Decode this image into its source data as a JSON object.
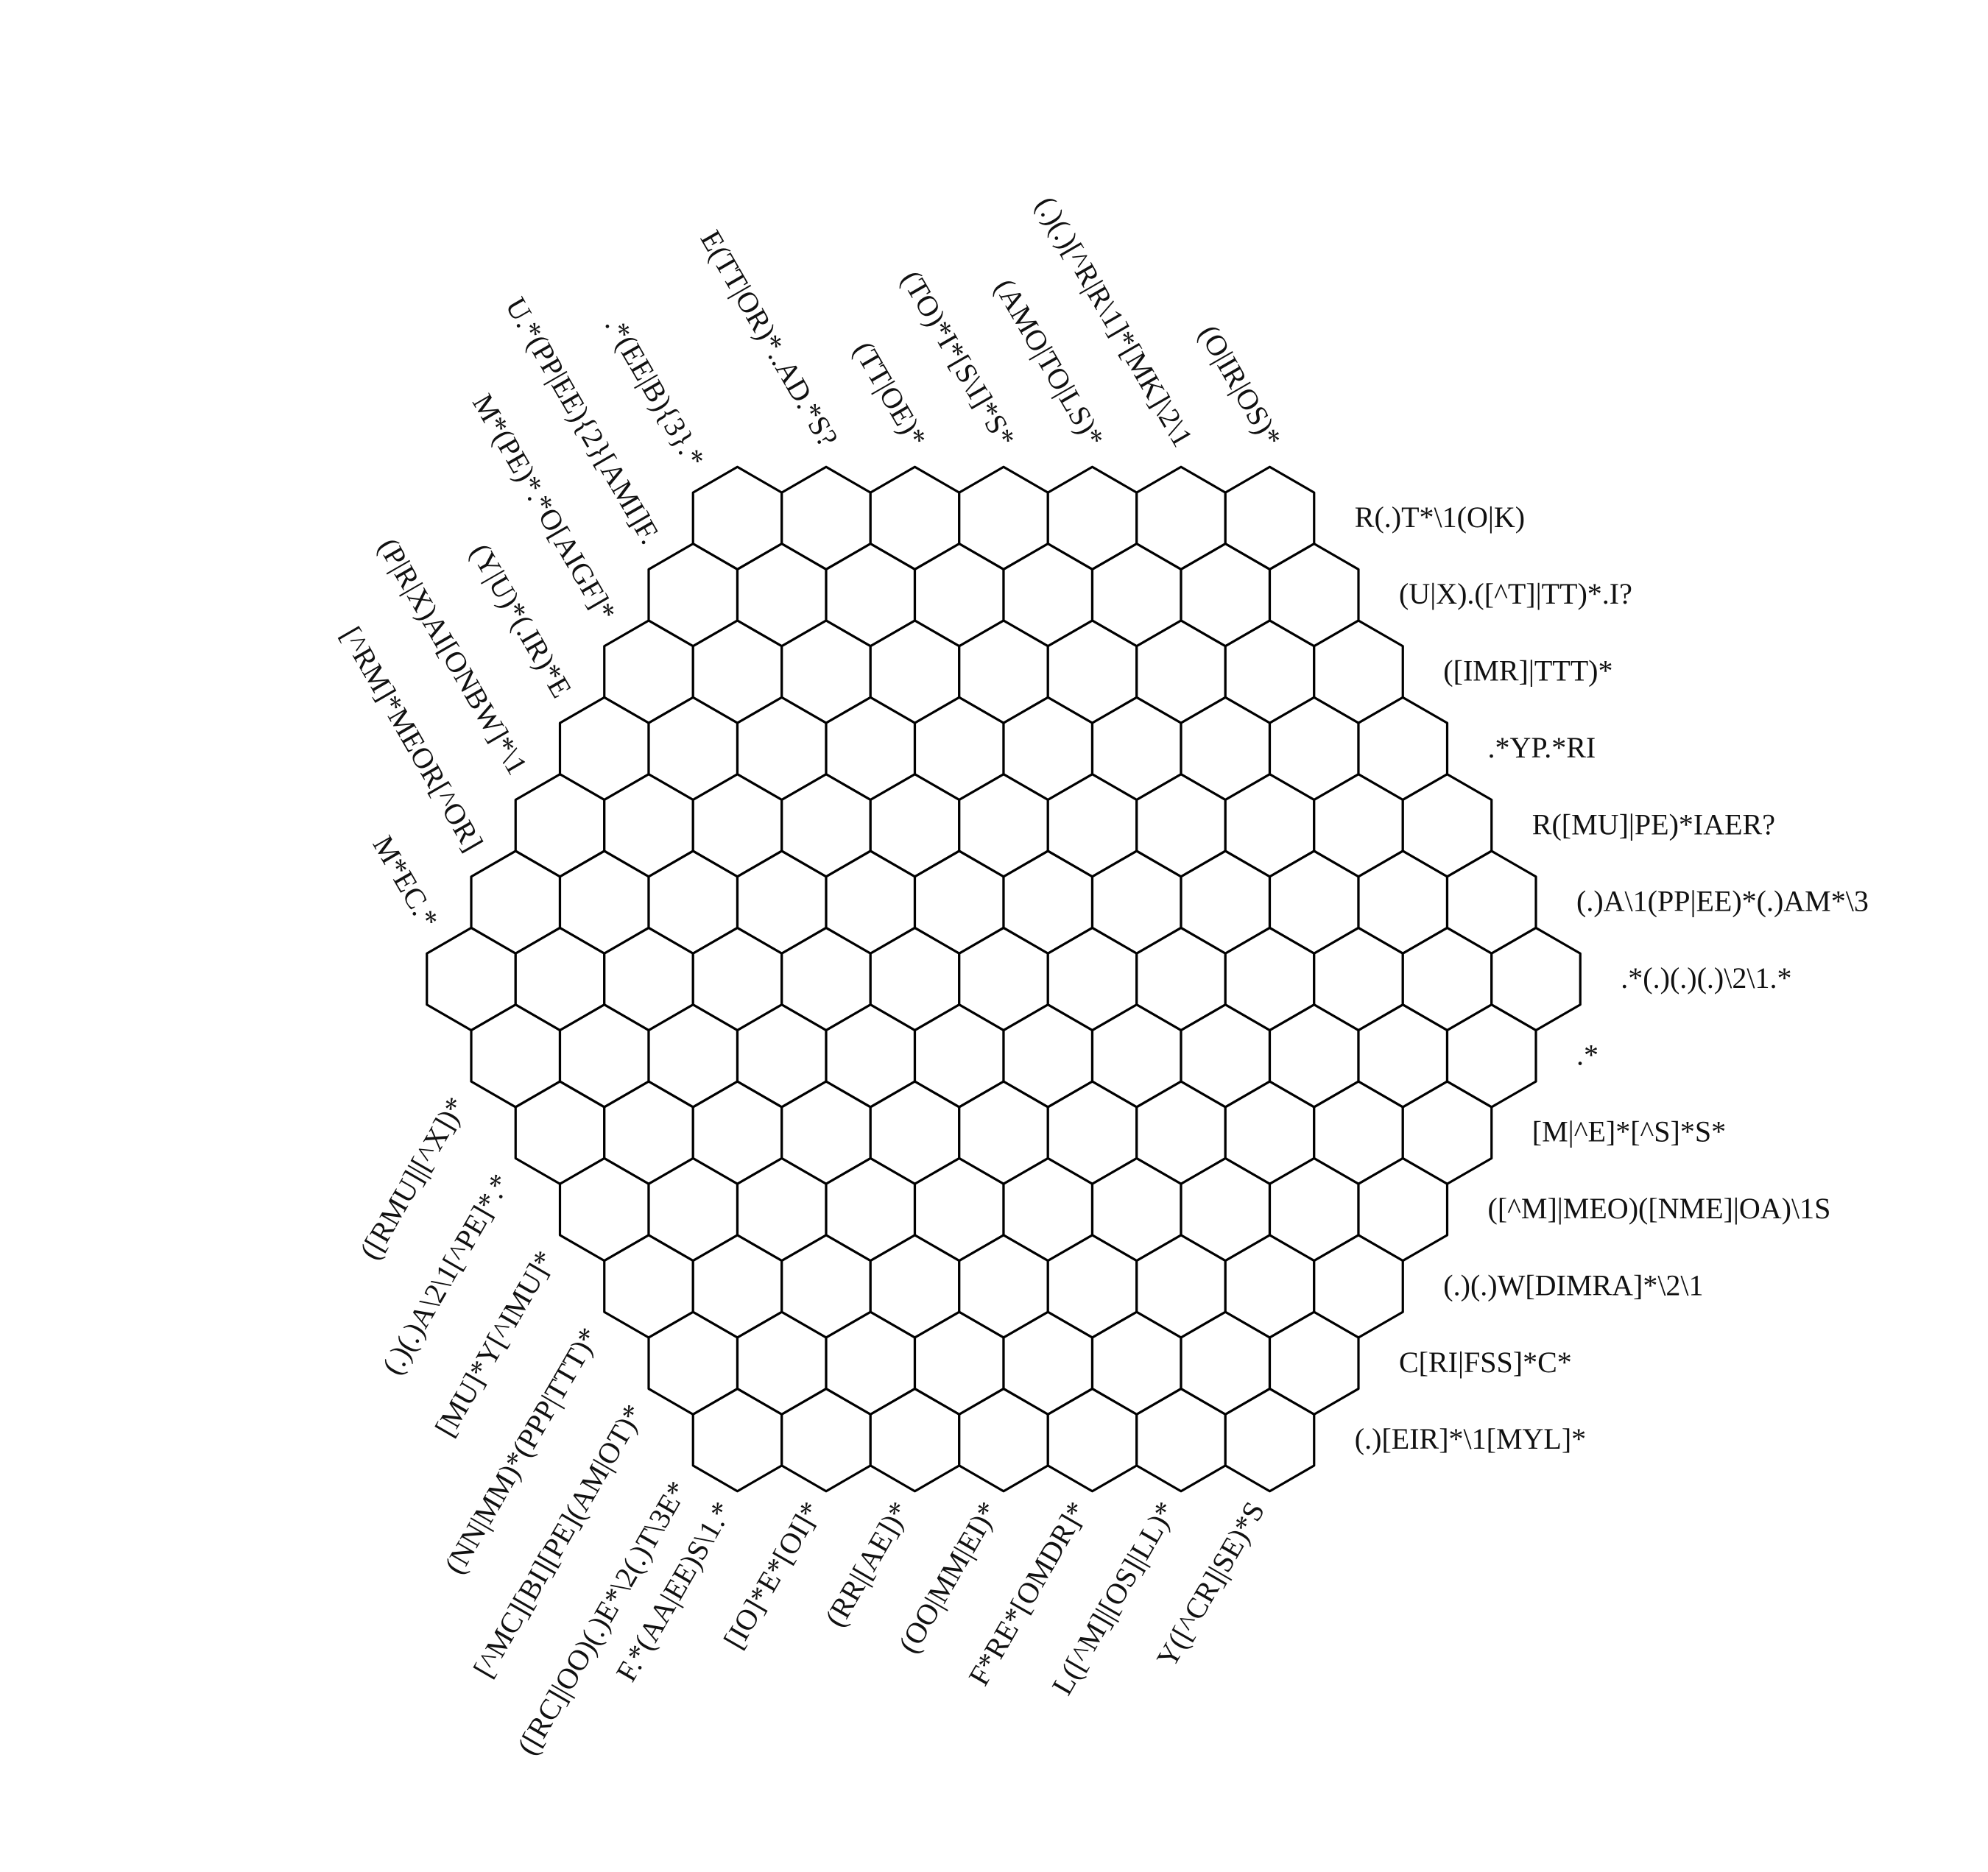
{
  "puzzle": {
    "grid_rows": 13,
    "row_lengths": [
      7,
      8,
      9,
      10,
      11,
      12,
      13,
      12,
      11,
      10,
      9,
      8,
      7
    ],
    "colors": {
      "background": "#ffffff",
      "lines": "#000000",
      "text": "#111111"
    },
    "clues": {
      "right": [
        "R(.)T*\\1(O|K)",
        "(U|X).([^T]|TT)*.I?",
        "([IMR]|TTT)*",
        ".*YP.*RI",
        "R([MU]|PE)*IAER?",
        "(.)A\\1(PP|EE)*(.)AM*\\3",
        ".*(.)(.)(.)\\2\\1.*",
        ".*",
        "[M|^E]*[^S]*S*",
        "([^M]|MEO)([NME]|OA)\\1S",
        "(.)(.)W[DIMRA]*\\2\\1",
        "C[RI|FSS]*C*",
        "(.)[EIR]*\\1[MYL]*"
      ],
      "top": [
        "M*EC.*",
        "[^RM]*MEOR[^OR]",
        "(P|R|X)AI[ONBW]*\\1",
        "(Y|U)*(.IR)*E",
        "M*(PE)*.*O[AIGF]*",
        "U.*(PP|EE){2}[AMI]F.",
        ".*(EE|B){3}.*",
        "E(TT|OR)*..AD.*S?",
        "(TT|OE)*",
        "(TO)*I*[S\\I]*S*",
        "(AMO|TO|LS)*",
        "(.)(.)[^R|R\\1]*[MK]\\2\\1",
        "(O|IR|OS)*"
      ],
      "bottom": [
        "([RMU]|[^X])*",
        "(.)(.)A\\2\\1[^PE]*.*",
        "[MU]*Y[^IMU]*",
        "(NN|MM)*(PPP|TTT)*",
        "[^MC][BI][PE](AM|OT)*",
        "([RC]|OO)(.)E*\\2(.)T\\3E*",
        "F.*(AA|EE)S\\1.*",
        "[IO]*E*[OI]*",
        "(RR|[AE])*",
        "(OO|MM|EI)*",
        "F*RE*[OMDR]*",
        "L([^M]|[OS]|LL)*",
        "Y([^CR]|SE)*S"
      ]
    }
  }
}
